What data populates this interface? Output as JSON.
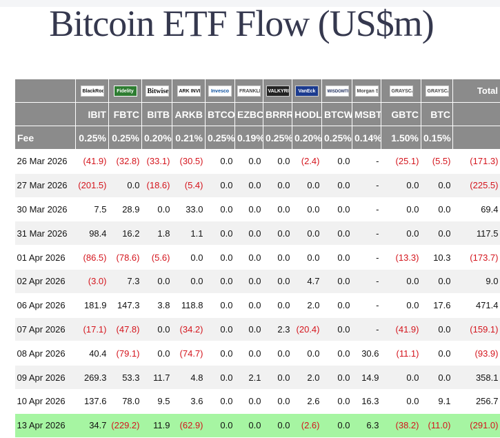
{
  "title": "Bitcoin ETF Flow (US$m)",
  "header": {
    "logos": [
      "BlackRock",
      "Fidelity",
      "Bitwise",
      "ARK INVEST",
      "Invesco",
      "FRANKLIN TEMPLETON",
      "VALKYRIE",
      "VanEck",
      "WISDOMTREE",
      "Morgan Stanley",
      "GRAYSCALE",
      "GRAYSCALE"
    ],
    "total_label": "Total",
    "tickers": [
      "IBIT",
      "FBTC",
      "BITB",
      "ARKB",
      "BTCO",
      "EZBC",
      "BRRR",
      "HODL",
      "BTCW",
      "MSBT",
      "GBTC",
      "BTC"
    ],
    "fee_label": "Fee",
    "fees": [
      "0.25%",
      "0.25%",
      "0.20%",
      "0.21%",
      "0.25%",
      "0.19%",
      "0.25%",
      "0.20%",
      "0.25%",
      "0.14%",
      "1.50%",
      "0.15%"
    ]
  },
  "rows": [
    {
      "date": "26 Mar 2026",
      "values": [
        "(41.9)",
        "(32.8)",
        "(33.1)",
        "(30.5)",
        "0.0",
        "0.0",
        "0.0",
        "(2.4)",
        "0.0",
        "-",
        "(25.1)",
        "(5.5)",
        "(171.3)"
      ]
    },
    {
      "date": "27 Mar 2026",
      "values": [
        "(201.5)",
        "0.0",
        "(18.6)",
        "(5.4)",
        "0.0",
        "0.0",
        "0.0",
        "0.0",
        "0.0",
        "-",
        "0.0",
        "0.0",
        "(225.5)"
      ]
    },
    {
      "date": "30 Mar 2026",
      "values": [
        "7.5",
        "28.9",
        "0.0",
        "33.0",
        "0.0",
        "0.0",
        "0.0",
        "0.0",
        "0.0",
        "-",
        "0.0",
        "0.0",
        "69.4"
      ]
    },
    {
      "date": "31 Mar 2026",
      "values": [
        "98.4",
        "16.2",
        "1.8",
        "1.1",
        "0.0",
        "0.0",
        "0.0",
        "0.0",
        "0.0",
        "-",
        "0.0",
        "0.0",
        "117.5"
      ]
    },
    {
      "date": "01 Apr 2026",
      "values": [
        "(86.5)",
        "(78.6)",
        "(5.6)",
        "0.0",
        "0.0",
        "0.0",
        "0.0",
        "0.0",
        "0.0",
        "-",
        "(13.3)",
        "10.3",
        "(173.7)"
      ]
    },
    {
      "date": "02 Apr 2026",
      "values": [
        "(3.0)",
        "7.3",
        "0.0",
        "0.0",
        "0.0",
        "0.0",
        "0.0",
        "4.7",
        "0.0",
        "-",
        "0.0",
        "0.0",
        "9.0"
      ]
    },
    {
      "date": "06 Apr 2026",
      "values": [
        "181.9",
        "147.3",
        "3.8",
        "118.8",
        "0.0",
        "0.0",
        "0.0",
        "2.0",
        "0.0",
        "-",
        "0.0",
        "17.6",
        "471.4"
      ]
    },
    {
      "date": "07 Apr 2026",
      "values": [
        "(17.1)",
        "(47.8)",
        "0.0",
        "(34.2)",
        "0.0",
        "0.0",
        "2.3",
        "(20.4)",
        "0.0",
        "-",
        "(41.9)",
        "0.0",
        "(159.1)"
      ]
    },
    {
      "date": "08 Apr 2026",
      "values": [
        "40.4",
        "(79.1)",
        "0.0",
        "(74.7)",
        "0.0",
        "0.0",
        "0.0",
        "0.0",
        "0.0",
        "30.6",
        "(11.1)",
        "0.0",
        "(93.9)"
      ]
    },
    {
      "date": "09 Apr 2026",
      "values": [
        "269.3",
        "53.3",
        "11.7",
        "4.8",
        "0.0",
        "2.1",
        "0.0",
        "2.0",
        "0.0",
        "14.9",
        "0.0",
        "0.0",
        "358.1"
      ]
    },
    {
      "date": "10 Apr 2026",
      "values": [
        "137.6",
        "78.0",
        "9.5",
        "3.6",
        "0.0",
        "0.0",
        "0.0",
        "2.6",
        "0.0",
        "16.3",
        "0.0",
        "9.1",
        "256.7"
      ]
    },
    {
      "date": "13 Apr 2026",
      "values": [
        "34.7",
        "(229.2)",
        "11.9",
        "(62.9)",
        "0.0",
        "0.0",
        "0.0",
        "(2.6)",
        "0.0",
        "6.3",
        "(38.2)",
        "(11.0)",
        "(291.0)"
      ]
    }
  ],
  "highlight_row_color": "#a6f5a2",
  "negative_color": "#d4141c",
  "header_color": "#8b8b8b"
}
